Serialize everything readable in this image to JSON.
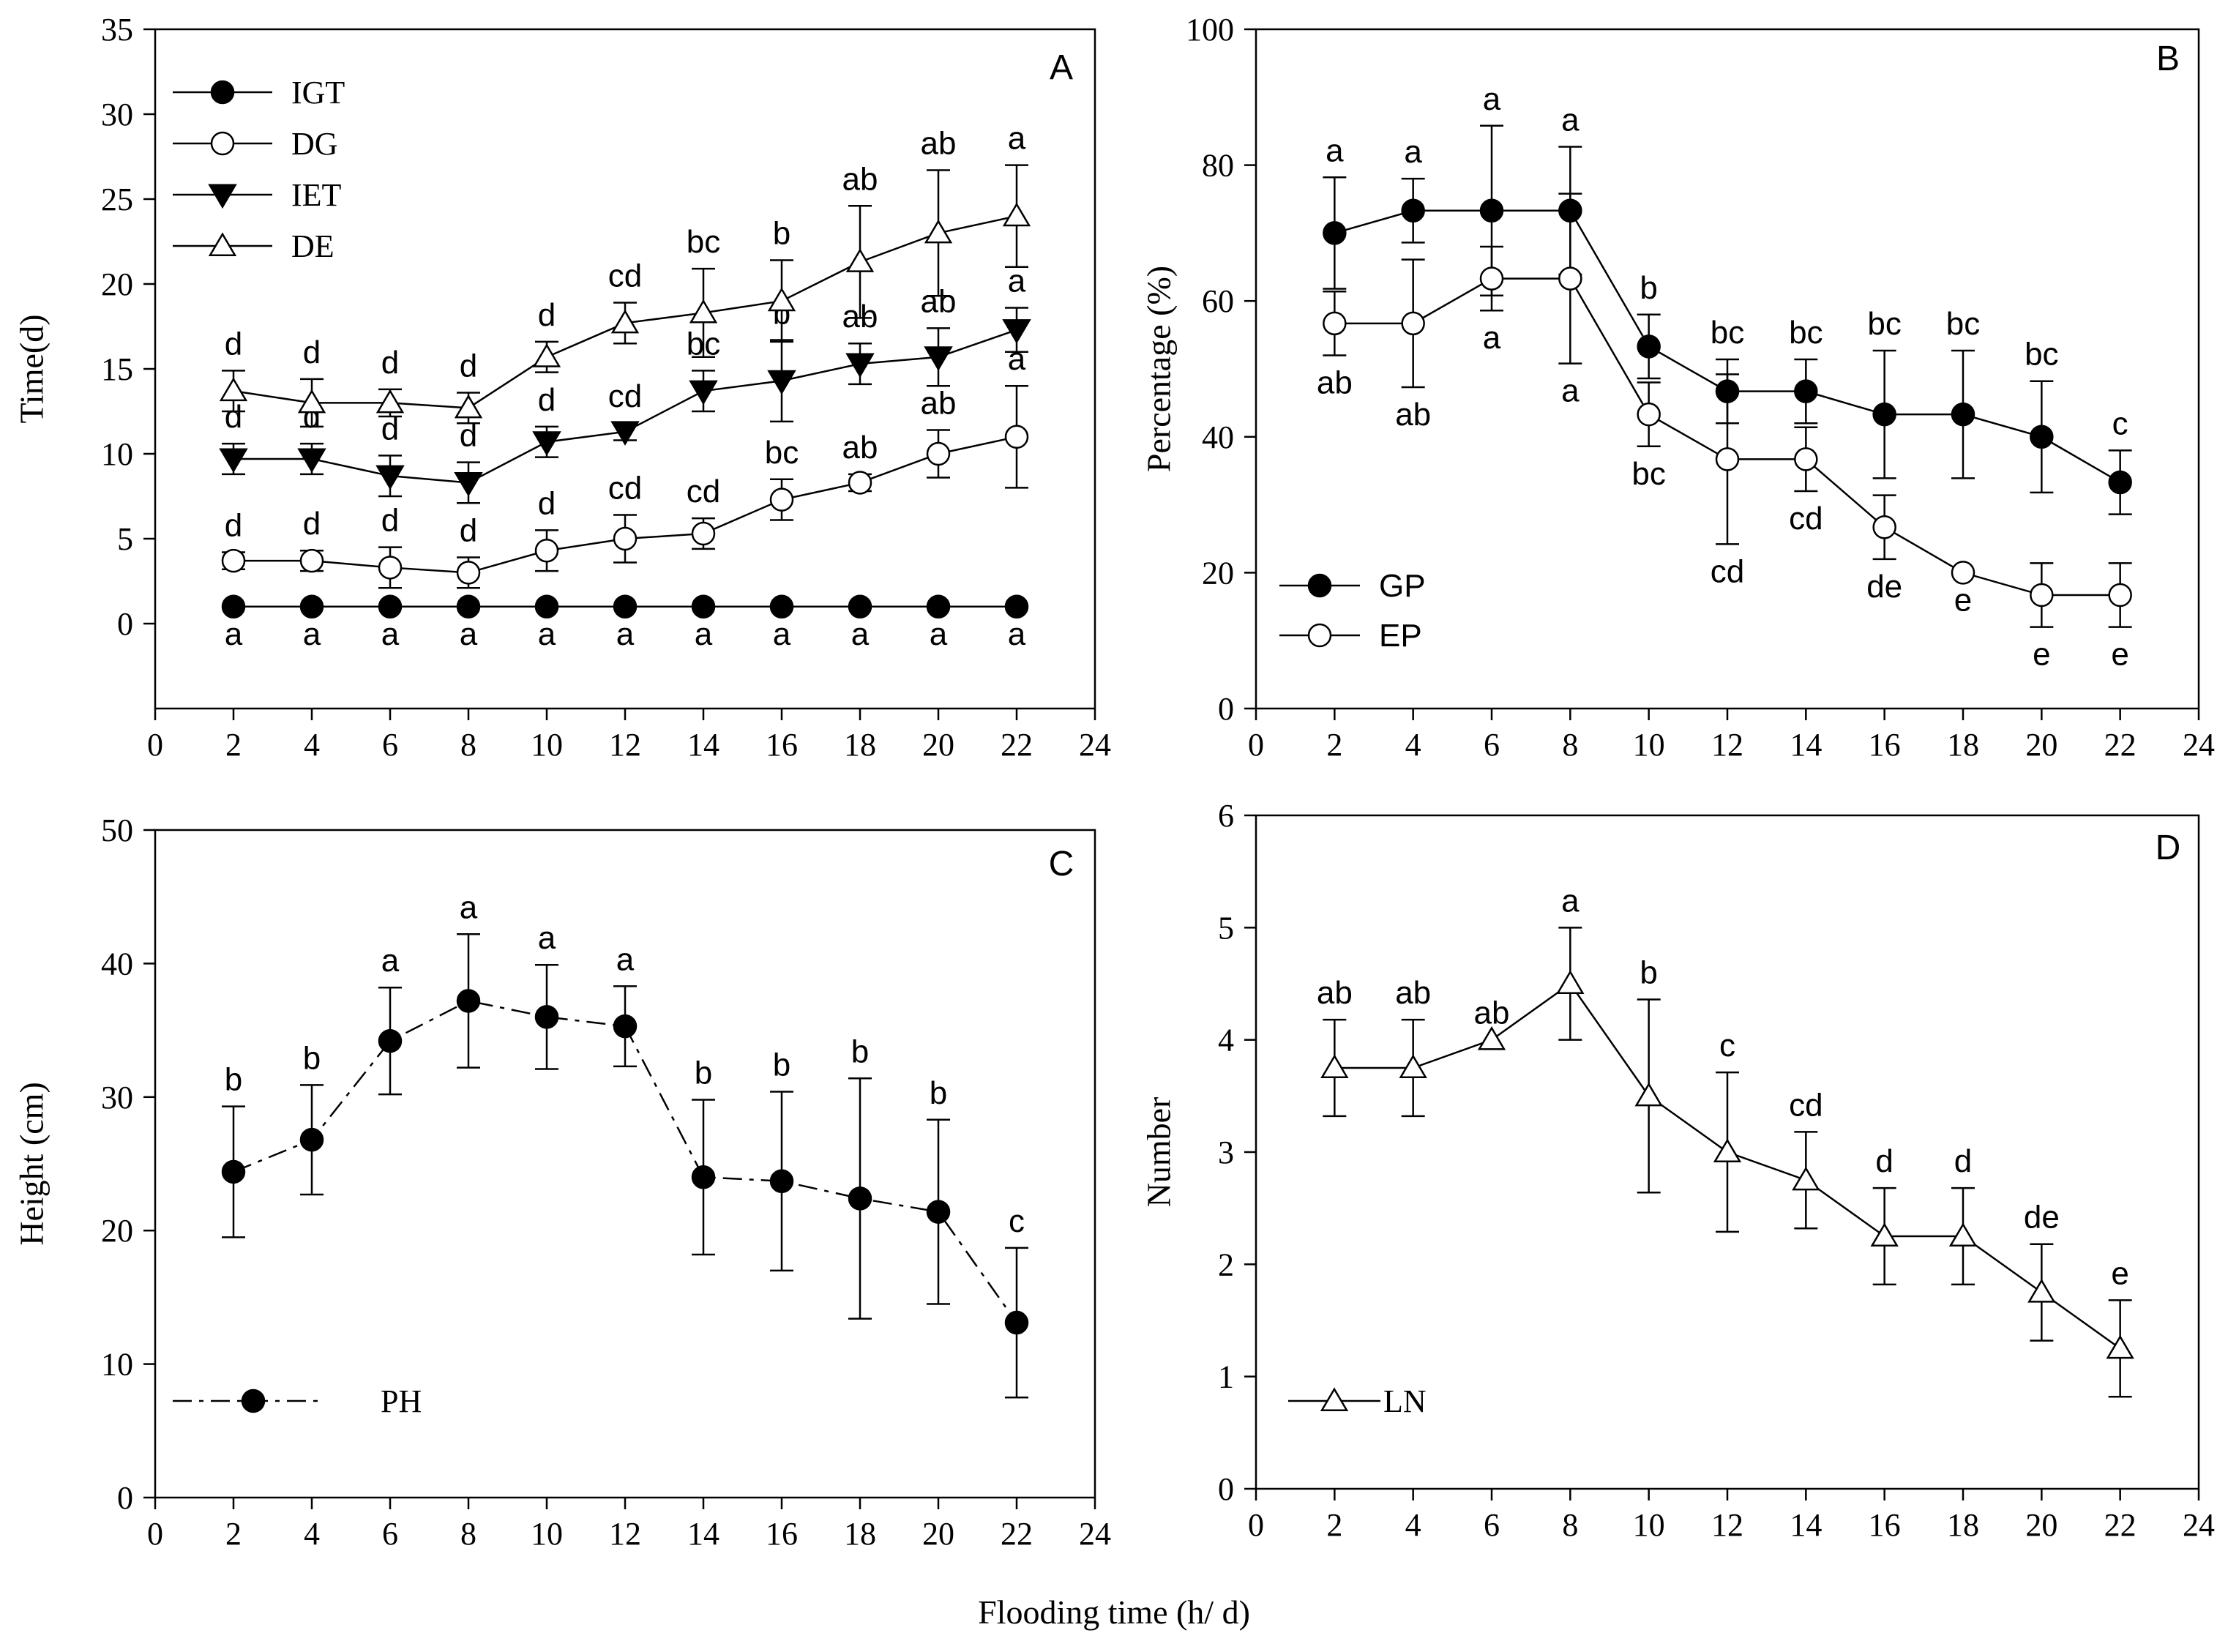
{
  "figure": {
    "xlabel": "Flooding time (h/ d)"
  },
  "chart_data": [
    {
      "panel": "A",
      "type": "line",
      "ylabel": "Time(d)",
      "xlim": [
        0,
        24
      ],
      "ylim": [
        -5,
        35
      ],
      "x_ticks": [
        0,
        2,
        4,
        6,
        8,
        10,
        12,
        14,
        16,
        18,
        20,
        22,
        24
      ],
      "y_ticks": [
        0,
        5,
        10,
        15,
        20,
        25,
        30,
        35
      ],
      "x": [
        2,
        4,
        6,
        8,
        10,
        12,
        14,
        16,
        18,
        20,
        22
      ],
      "legend_position": "top-left",
      "series": [
        {
          "name": "IGT",
          "marker": "filled-circle",
          "values": [
            1,
            1,
            1,
            1,
            1,
            1,
            1,
            1,
            1,
            1,
            1
          ],
          "errors": [
            0,
            0,
            0,
            0,
            0,
            0,
            0,
            0,
            0,
            0,
            0
          ],
          "letters": [
            "a",
            "a",
            "a",
            "a",
            "a",
            "a",
            "a",
            "a",
            "a",
            "a",
            "a"
          ],
          "letter_pos": "below"
        },
        {
          "name": "DG",
          "marker": "open-circle",
          "values": [
            3.7,
            3.7,
            3.3,
            3.0,
            4.3,
            5.0,
            5.3,
            7.3,
            8.3,
            10.0,
            11.0
          ],
          "errors": [
            0.5,
            0.6,
            1.2,
            0.9,
            1.2,
            1.4,
            0.9,
            1.2,
            0.5,
            1.4,
            3.0
          ],
          "letters": [
            "d",
            "d",
            "d",
            "d",
            "d",
            "cd",
            "cd",
            "bc",
            "ab",
            "ab",
            "a"
          ],
          "letter_pos": "above"
        },
        {
          "name": "IET",
          "marker": "filled-triangle-down",
          "values": [
            9.7,
            9.7,
            8.7,
            8.3,
            10.7,
            11.3,
            13.7,
            14.3,
            15.3,
            15.7,
            17.3
          ],
          "errors": [
            0.9,
            0.9,
            1.2,
            1.2,
            0.9,
            0.5,
            1.2,
            2.4,
            1.2,
            1.7,
            1.3
          ],
          "letters": [
            "d",
            "d",
            "d",
            "d",
            "d",
            "cd",
            "bc",
            "b",
            "ab",
            "ab",
            "a"
          ],
          "letter_pos": "above"
        },
        {
          "name": "DE",
          "marker": "open-triangle-up",
          "values": [
            13.7,
            13.0,
            13.0,
            12.7,
            15.7,
            17.7,
            18.3,
            19.0,
            21.3,
            23.0,
            24.0
          ],
          "errors": [
            1.2,
            1.4,
            0.8,
            0.9,
            0.9,
            1.2,
            2.6,
            2.4,
            3.3,
            3.7,
            3.0
          ],
          "letters": [
            "d",
            "d",
            "d",
            "d",
            "d",
            "cd",
            "bc",
            "b",
            "ab",
            "ab",
            "a"
          ],
          "letter_pos": "above"
        }
      ]
    },
    {
      "panel": "B",
      "type": "line",
      "ylabel": "Percentage (%)",
      "xlim": [
        0,
        24
      ],
      "ylim": [
        0,
        100
      ],
      "x_ticks": [
        0,
        2,
        4,
        6,
        8,
        10,
        12,
        14,
        16,
        18,
        20,
        22,
        24
      ],
      "y_ticks": [
        0,
        20,
        40,
        60,
        80,
        100
      ],
      "x": [
        2,
        4,
        6,
        8,
        10,
        12,
        14,
        16,
        18,
        20,
        22
      ],
      "legend_position": "bottom-left",
      "series": [
        {
          "name": "GP",
          "marker": "filled-circle",
          "values": [
            70,
            73.3,
            73.3,
            73.3,
            53.3,
            46.7,
            46.7,
            43.3,
            43.3,
            40,
            33.3
          ],
          "errors": [
            8.2,
            4.7,
            12.5,
            9.4,
            4.7,
            4.7,
            4.7,
            9.4,
            9.4,
            8.2,
            4.7
          ],
          "letters": [
            "a",
            "a",
            "a",
            "a",
            "b",
            "bc",
            "bc",
            "bc",
            "bc",
            "bc",
            "c"
          ],
          "letter_pos": "above"
        },
        {
          "name": "EP",
          "marker": "open-circle",
          "values": [
            56.7,
            56.7,
            63.3,
            63.3,
            43.3,
            36.7,
            36.7,
            26.7,
            20,
            16.7,
            16.7
          ],
          "errors": [
            4.7,
            9.4,
            4.7,
            12.5,
            4.7,
            12.5,
            4.7,
            4.7,
            0,
            4.7,
            4.7
          ],
          "letters": [
            "ab",
            "ab",
            "a",
            "a",
            "bc",
            "cd",
            "cd",
            "de",
            "e",
            "e",
            "e"
          ],
          "letter_pos": "below"
        }
      ]
    },
    {
      "panel": "C",
      "type": "line",
      "ylabel": "Height (cm)",
      "xlim": [
        0,
        24
      ],
      "ylim": [
        0,
        50
      ],
      "x_ticks": [
        0,
        2,
        4,
        6,
        8,
        10,
        12,
        14,
        16,
        18,
        20,
        22,
        24
      ],
      "y_ticks": [
        0,
        10,
        20,
        30,
        40,
        50
      ],
      "x": [
        2,
        4,
        6,
        8,
        10,
        12,
        14,
        16,
        18,
        20,
        22
      ],
      "legend_position": "bottom-left",
      "series": [
        {
          "name": "PH",
          "marker": "filled-circle",
          "line_style": "dash-dot",
          "values": [
            24.4,
            26.8,
            34.2,
            37.2,
            36.0,
            35.3,
            24.0,
            23.7,
            22.4,
            21.4,
            13.1
          ],
          "errors": [
            4.9,
            4.1,
            4.0,
            5.0,
            3.9,
            3.0,
            5.8,
            6.7,
            9.0,
            6.9,
            5.6
          ],
          "letters": [
            "b",
            "b",
            "a",
            "a",
            "a",
            "a",
            "b",
            "b",
            "b",
            "b",
            "c"
          ],
          "letter_pos": "above"
        }
      ]
    },
    {
      "panel": "D",
      "type": "line",
      "ylabel": "Number",
      "xlim": [
        0,
        24
      ],
      "ylim": [
        0,
        6
      ],
      "x_ticks": [
        0,
        2,
        4,
        6,
        8,
        10,
        12,
        14,
        16,
        18,
        20,
        22,
        24
      ],
      "y_ticks": [
        0,
        1,
        2,
        3,
        4,
        5,
        6
      ],
      "x": [
        2,
        4,
        6,
        8,
        10,
        12,
        14,
        16,
        18,
        20,
        22
      ],
      "legend_position": "bottom-left",
      "series": [
        {
          "name": "LN",
          "marker": "open-triangle-up",
          "values": [
            3.75,
            3.75,
            4.0,
            4.5,
            3.5,
            3.0,
            2.75,
            2.25,
            2.25,
            1.75,
            1.25
          ],
          "errors": [
            0.43,
            0.43,
            0,
            0.5,
            0.86,
            0.71,
            0.43,
            0.43,
            0.43,
            0.43,
            0.43
          ],
          "letters": [
            "ab",
            "ab",
            "ab",
            "a",
            "b",
            "c",
            "cd",
            "d",
            "d",
            "de",
            "e"
          ],
          "letter_pos": "above"
        }
      ]
    }
  ]
}
